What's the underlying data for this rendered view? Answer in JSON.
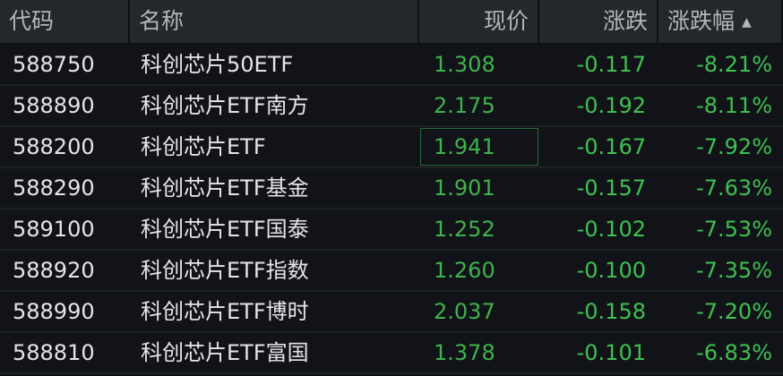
{
  "headers": {
    "code": "代码",
    "name": "名称",
    "price": "现价",
    "change": "涨跌",
    "pct": "涨跌幅",
    "sort_icon": "▲"
  },
  "rows": [
    {
      "code": "588750",
      "name": "科创芯片50ETF",
      "price": "1.308",
      "change": "-0.117",
      "pct": "-8.21%"
    },
    {
      "code": "588890",
      "name": "科创芯片ETF南方",
      "price": "2.175",
      "change": "-0.192",
      "pct": "-8.11%"
    },
    {
      "code": "588200",
      "name": "科创芯片ETF",
      "price": "1.941",
      "change": "-0.167",
      "pct": "-7.92%"
    },
    {
      "code": "588290",
      "name": "科创芯片ETF基金",
      "price": "1.901",
      "change": "-0.157",
      "pct": "-7.63%"
    },
    {
      "code": "589100",
      "name": "科创芯片ETF国泰",
      "price": "1.252",
      "change": "-0.102",
      "pct": "-7.53%"
    },
    {
      "code": "588920",
      "name": "科创芯片ETF指数",
      "price": "1.260",
      "change": "-0.100",
      "pct": "-7.35%"
    },
    {
      "code": "588990",
      "name": "科创芯片ETF博时",
      "price": "2.037",
      "change": "-0.158",
      "pct": "-7.20%"
    },
    {
      "code": "588810",
      "name": "科创芯片ETF富国",
      "price": "1.378",
      "change": "-0.101",
      "pct": "-6.83%"
    }
  ],
  "colors": {
    "down": "#3fc050",
    "header_bg": "#24272c",
    "row_bg": "#111318"
  }
}
